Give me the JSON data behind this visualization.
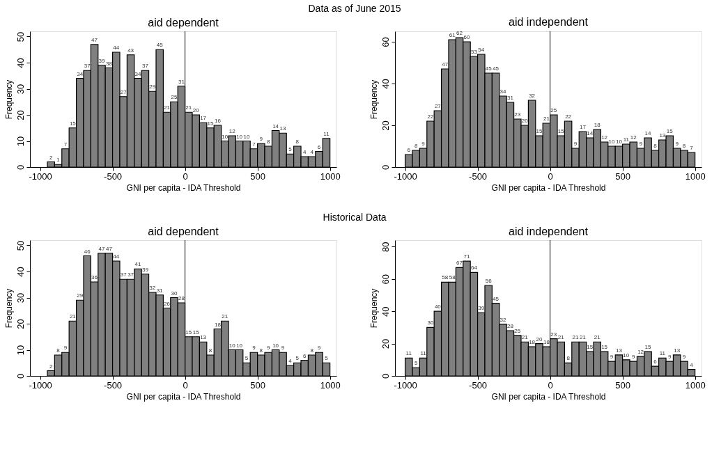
{
  "chart_data": [
    {
      "type": "histogram",
      "title": "aid dependent",
      "annotations": [
        "Data as of June 2015"
      ],
      "xlabel": "GNI per capita - IDA Threshold",
      "ylabel": "Frequency",
      "color": "#808080",
      "bins": [
        -950,
        -900,
        -850,
        -800,
        -750,
        -700,
        -650,
        -600,
        -550,
        -500,
        -450,
        -400,
        -350,
        -300,
        -250,
        -200,
        -150,
        -100,
        -50,
        0,
        50,
        100,
        150,
        200,
        250,
        300,
        350,
        400,
        450,
        500,
        550,
        600,
        650,
        700,
        750,
        800,
        850,
        900,
        950,
        1000
      ],
      "values": [
        2,
        1,
        7,
        15,
        34,
        37,
        47,
        39,
        38,
        44,
        27,
        43,
        34,
        37,
        29,
        45,
        21,
        25,
        31,
        21,
        20,
        17,
        15,
        16,
        10,
        12,
        10,
        10,
        7,
        9,
        8,
        14,
        13,
        5,
        8,
        4,
        4,
        6,
        11
      ],
      "xlim": [
        -1070,
        1045
      ],
      "xticks": [
        -1000,
        -500,
        0,
        500,
        1000
      ],
      "ylim": [
        0,
        52
      ],
      "yticks": [
        0,
        10,
        20,
        30,
        40,
        50
      ],
      "ref_lines": [
        {
          "axis": "x",
          "value": 0
        }
      ],
      "data_labels": true,
      "grid": false,
      "legend": false
    },
    {
      "type": "histogram",
      "title": "aid independent",
      "xlabel": "GNI per capita - IDA Threshold",
      "ylabel": "Frequency",
      "color": "#808080",
      "bins": [
        -1000,
        -950,
        -900,
        -850,
        -800,
        -750,
        -700,
        -650,
        -600,
        -550,
        -500,
        -450,
        -400,
        -350,
        -300,
        -250,
        -200,
        -150,
        -100,
        -50,
        0,
        50,
        100,
        150,
        200,
        250,
        300,
        350,
        400,
        450,
        500,
        550,
        600,
        650,
        700,
        750,
        800,
        850,
        900,
        950,
        1000
      ],
      "values": [
        6,
        8,
        9,
        22,
        27,
        47,
        61,
        62,
        60,
        53,
        54,
        45,
        45,
        34,
        31,
        23,
        20,
        32,
        15,
        21,
        25,
        15,
        22,
        9,
        17,
        14,
        18,
        12,
        10,
        10,
        11,
        12,
        9,
        14,
        8,
        13,
        15,
        9,
        8,
        7
      ],
      "xlim": [
        -1070,
        1045
      ],
      "xticks": [
        -1000,
        -500,
        0,
        500,
        1000
      ],
      "ylim": [
        0,
        65
      ],
      "yticks": [
        0,
        20,
        40,
        60
      ],
      "ref_lines": [
        {
          "axis": "x",
          "value": 0
        }
      ],
      "data_labels": true,
      "grid": false,
      "legend": false
    },
    {
      "type": "histogram",
      "title": "aid dependent",
      "annotations": [
        "Historical Data"
      ],
      "xlabel": "GNI per capita - IDA Threshold",
      "ylabel": "Frequency",
      "color": "#808080",
      "bins": [
        -950,
        -900,
        -850,
        -800,
        -750,
        -700,
        -650,
        -600,
        -550,
        -500,
        -450,
        -400,
        -350,
        -300,
        -250,
        -200,
        -150,
        -100,
        -50,
        0,
        50,
        100,
        150,
        200,
        250,
        300,
        350,
        400,
        450,
        500,
        550,
        600,
        650,
        700,
        750,
        800,
        850,
        900,
        950,
        1000
      ],
      "values": [
        2,
        8,
        9,
        21,
        29,
        46,
        36,
        47,
        47,
        44,
        37,
        37,
        41,
        39,
        32,
        31,
        26,
        30,
        28,
        15,
        15,
        13,
        8,
        18,
        21,
        10,
        10,
        5,
        9,
        8,
        9,
        10,
        9,
        4,
        5,
        6,
        8,
        9,
        5
      ],
      "xlim": [
        -1070,
        1045
      ],
      "xticks": [
        -1000,
        -500,
        0,
        500,
        1000
      ],
      "ylim": [
        0,
        52
      ],
      "yticks": [
        0,
        10,
        20,
        30,
        40,
        50
      ],
      "ref_lines": [
        {
          "axis": "x",
          "value": 0
        }
      ],
      "data_labels": true,
      "grid": false,
      "legend": false
    },
    {
      "type": "histogram",
      "title": "aid independent",
      "xlabel": "GNI per capita - IDA Threshold",
      "ylabel": "Frequency",
      "color": "#808080",
      "bins": [
        -1000,
        -950,
        -900,
        -850,
        -800,
        -750,
        -700,
        -650,
        -600,
        -550,
        -500,
        -450,
        -400,
        -350,
        -300,
        -250,
        -200,
        -150,
        -100,
        -50,
        0,
        50,
        100,
        150,
        200,
        250,
        300,
        350,
        400,
        450,
        500,
        550,
        600,
        650,
        700,
        750,
        800,
        850,
        900,
        950,
        1000
      ],
      "values": [
        11,
        5,
        11,
        30,
        40,
        58,
        58,
        67,
        71,
        64,
        39,
        56,
        45,
        32,
        28,
        25,
        21,
        18,
        20,
        18,
        23,
        21,
        8,
        21,
        21,
        15,
        21,
        15,
        9,
        13,
        10,
        9,
        12,
        15,
        6,
        11,
        9,
        13,
        9,
        4
      ],
      "xlim": [
        -1070,
        1045
      ],
      "xticks": [
        -1000,
        -500,
        0,
        500,
        1000
      ],
      "ylim": [
        0,
        84
      ],
      "yticks": [
        0,
        20,
        40,
        60,
        80
      ],
      "ref_lines": [
        {
          "axis": "x",
          "value": 0
        }
      ],
      "data_labels": true,
      "grid": false,
      "legend": false
    }
  ]
}
